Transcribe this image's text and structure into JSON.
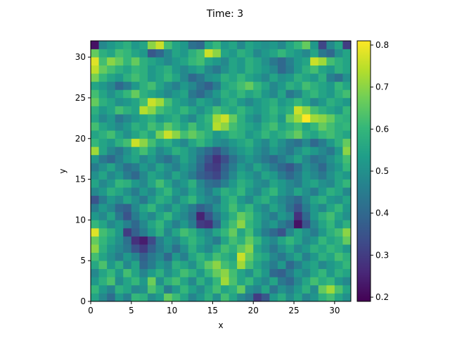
{
  "chart_data": {
    "type": "heatmap",
    "title": "Time: 3",
    "xlabel": "x",
    "ylabel": "y",
    "xlim": [
      0,
      32
    ],
    "ylim": [
      0,
      32
    ],
    "grid": false,
    "colormap": "viridis",
    "colorbar": {
      "min": 0.19,
      "max": 0.81,
      "ticks": [
        "0.2",
        "0.3",
        "0.4",
        "0.5",
        "0.6",
        "0.7",
        "0.8"
      ]
    },
    "x_ticks": [
      "0",
      "5",
      "10",
      "15",
      "20",
      "25",
      "30"
    ],
    "y_ticks": [
      "0",
      "5",
      "10",
      "15",
      "20",
      "25",
      "30"
    ],
    "rows": 32,
    "cols": 32,
    "values": [
      [
        0.55,
        0.48,
        0.41,
        0.52,
        0.46,
        0.6,
        0.58,
        0.49,
        0.53,
        0.66,
        0.61,
        0.55,
        0.47,
        0.52,
        0.58,
        0.5,
        0.62,
        0.55,
        0.48,
        0.44,
        0.3,
        0.36,
        0.52,
        0.57,
        0.49,
        0.55,
        0.47,
        0.51,
        0.58,
        0.62,
        0.55,
        0.5
      ],
      [
        0.6,
        0.52,
        0.47,
        0.58,
        0.55,
        0.48,
        0.5,
        0.63,
        0.57,
        0.45,
        0.52,
        0.6,
        0.54,
        0.49,
        0.56,
        0.62,
        0.55,
        0.58,
        0.66,
        0.5,
        0.47,
        0.55,
        0.43,
        0.5,
        0.46,
        0.52,
        0.58,
        0.49,
        0.66,
        0.72,
        0.63,
        0.55
      ],
      [
        0.52,
        0.58,
        0.63,
        0.49,
        0.55,
        0.6,
        0.52,
        0.67,
        0.5,
        0.58,
        0.62,
        0.55,
        0.48,
        0.58,
        0.52,
        0.6,
        0.72,
        0.63,
        0.55,
        0.6,
        0.52,
        0.48,
        0.55,
        0.44,
        0.4,
        0.48,
        0.55,
        0.62,
        0.57,
        0.6,
        0.52,
        0.48
      ],
      [
        0.48,
        0.55,
        0.6,
        0.52,
        0.62,
        0.55,
        0.47,
        0.53,
        0.58,
        0.5,
        0.55,
        0.62,
        0.58,
        0.52,
        0.6,
        0.66,
        0.7,
        0.62,
        0.55,
        0.5,
        0.58,
        0.52,
        0.4,
        0.38,
        0.45,
        0.52,
        0.48,
        0.55,
        0.6,
        0.52,
        0.58,
        0.55
      ],
      [
        0.56,
        0.63,
        0.52,
        0.58,
        0.48,
        0.55,
        0.4,
        0.45,
        0.52,
        0.48,
        0.58,
        0.55,
        0.5,
        0.58,
        0.65,
        0.7,
        0.62,
        0.58,
        0.72,
        0.62,
        0.55,
        0.5,
        0.45,
        0.52,
        0.4,
        0.46,
        0.52,
        0.55,
        0.48,
        0.52,
        0.55,
        0.6
      ],
      [
        0.62,
        0.55,
        0.5,
        0.45,
        0.52,
        0.47,
        0.38,
        0.44,
        0.48,
        0.4,
        0.52,
        0.46,
        0.55,
        0.6,
        0.55,
        0.62,
        0.58,
        0.55,
        0.76,
        0.66,
        0.58,
        0.55,
        0.48,
        0.44,
        0.5,
        0.55,
        0.46,
        0.52,
        0.58,
        0.55,
        0.62,
        0.58
      ],
      [
        0.7,
        0.58,
        0.52,
        0.48,
        0.44,
        0.35,
        0.3,
        0.38,
        0.45,
        0.5,
        0.42,
        0.5,
        0.58,
        0.52,
        0.48,
        0.55,
        0.62,
        0.58,
        0.65,
        0.7,
        0.55,
        0.5,
        0.44,
        0.5,
        0.55,
        0.48,
        0.52,
        0.58,
        0.55,
        0.6,
        0.57,
        0.52
      ],
      [
        0.66,
        0.6,
        0.55,
        0.5,
        0.42,
        0.28,
        0.24,
        0.33,
        0.46,
        0.52,
        0.48,
        0.55,
        0.6,
        0.55,
        0.5,
        0.45,
        0.55,
        0.62,
        0.58,
        0.66,
        0.6,
        0.52,
        0.48,
        0.55,
        0.6,
        0.55,
        0.48,
        0.52,
        0.6,
        0.55,
        0.58,
        0.66
      ],
      [
        0.78,
        0.62,
        0.58,
        0.52,
        0.3,
        0.38,
        0.45,
        0.52,
        0.58,
        0.48,
        0.55,
        0.62,
        0.58,
        0.52,
        0.48,
        0.55,
        0.6,
        0.66,
        0.55,
        0.62,
        0.52,
        0.45,
        0.4,
        0.35,
        0.48,
        0.55,
        0.5,
        0.45,
        0.52,
        0.58,
        0.62,
        0.7
      ],
      [
        0.6,
        0.55,
        0.48,
        0.52,
        0.46,
        0.4,
        0.48,
        0.55,
        0.6,
        0.52,
        0.46,
        0.52,
        0.45,
        0.3,
        0.28,
        0.4,
        0.55,
        0.62,
        0.7,
        0.6,
        0.55,
        0.48,
        0.52,
        0.45,
        0.4,
        0.22,
        0.35,
        0.48,
        0.55,
        0.6,
        0.52,
        0.58
      ],
      [
        0.52,
        0.48,
        0.55,
        0.44,
        0.35,
        0.45,
        0.52,
        0.48,
        0.55,
        0.6,
        0.52,
        0.48,
        0.42,
        0.25,
        0.35,
        0.45,
        0.52,
        0.58,
        0.66,
        0.62,
        0.55,
        0.5,
        0.45,
        0.52,
        0.48,
        0.28,
        0.4,
        0.52,
        0.58,
        0.62,
        0.55,
        0.5
      ],
      [
        0.45,
        0.52,
        0.48,
        0.4,
        0.38,
        0.48,
        0.55,
        0.6,
        0.52,
        0.48,
        0.55,
        0.5,
        0.45,
        0.38,
        0.42,
        0.5,
        0.55,
        0.62,
        0.55,
        0.6,
        0.52,
        0.48,
        0.55,
        0.5,
        0.42,
        0.35,
        0.45,
        0.52,
        0.48,
        0.55,
        0.6,
        0.52
      ],
      [
        0.35,
        0.45,
        0.52,
        0.48,
        0.55,
        0.5,
        0.44,
        0.52,
        0.58,
        0.55,
        0.48,
        0.55,
        0.6,
        0.52,
        0.48,
        0.45,
        0.55,
        0.6,
        0.52,
        0.48,
        0.55,
        0.58,
        0.52,
        0.48,
        0.44,
        0.4,
        0.48,
        0.55,
        0.58,
        0.52,
        0.5,
        0.55
      ],
      [
        0.48,
        0.52,
        0.58,
        0.55,
        0.5,
        0.45,
        0.52,
        0.48,
        0.55,
        0.6,
        0.52,
        0.48,
        0.55,
        0.5,
        0.45,
        0.52,
        0.58,
        0.55,
        0.6,
        0.52,
        0.48,
        0.55,
        0.6,
        0.52,
        0.48,
        0.55,
        0.5,
        0.45,
        0.52,
        0.58,
        0.55,
        0.48
      ],
      [
        0.55,
        0.48,
        0.52,
        0.6,
        0.58,
        0.52,
        0.48,
        0.55,
        0.62,
        0.55,
        0.48,
        0.52,
        0.58,
        0.48,
        0.42,
        0.4,
        0.46,
        0.52,
        0.58,
        0.55,
        0.5,
        0.48,
        0.55,
        0.52,
        0.48,
        0.45,
        0.52,
        0.55,
        0.5,
        0.48,
        0.55,
        0.6
      ],
      [
        0.5,
        0.55,
        0.48,
        0.52,
        0.45,
        0.4,
        0.48,
        0.55,
        0.52,
        0.48,
        0.55,
        0.5,
        0.45,
        0.38,
        0.35,
        0.32,
        0.4,
        0.48,
        0.55,
        0.52,
        0.48,
        0.55,
        0.52,
        0.45,
        0.4,
        0.45,
        0.52,
        0.48,
        0.44,
        0.5,
        0.55,
        0.52
      ],
      [
        0.45,
        0.5,
        0.55,
        0.48,
        0.42,
        0.45,
        0.52,
        0.48,
        0.55,
        0.5,
        0.46,
        0.52,
        0.48,
        0.4,
        0.32,
        0.3,
        0.38,
        0.45,
        0.52,
        0.48,
        0.55,
        0.5,
        0.45,
        0.4,
        0.36,
        0.42,
        0.5,
        0.46,
        0.4,
        0.48,
        0.52,
        0.6
      ],
      [
        0.52,
        0.44,
        0.4,
        0.46,
        0.52,
        0.55,
        0.48,
        0.52,
        0.46,
        0.42,
        0.48,
        0.55,
        0.5,
        0.42,
        0.35,
        0.28,
        0.34,
        0.42,
        0.48,
        0.52,
        0.48,
        0.44,
        0.4,
        0.45,
        0.5,
        0.55,
        0.48,
        0.42,
        0.45,
        0.5,
        0.55,
        0.62
      ],
      [
        0.72,
        0.55,
        0.48,
        0.44,
        0.5,
        0.56,
        0.62,
        0.55,
        0.48,
        0.52,
        0.58,
        0.55,
        0.5,
        0.45,
        0.4,
        0.35,
        0.42,
        0.48,
        0.52,
        0.55,
        0.5,
        0.46,
        0.52,
        0.48,
        0.44,
        0.5,
        0.55,
        0.52,
        0.48,
        0.44,
        0.52,
        0.7
      ],
      [
        0.6,
        0.55,
        0.52,
        0.58,
        0.62,
        0.76,
        0.7,
        0.62,
        0.55,
        0.58,
        0.52,
        0.48,
        0.55,
        0.6,
        0.55,
        0.5,
        0.48,
        0.52,
        0.55,
        0.58,
        0.52,
        0.48,
        0.55,
        0.5,
        0.45,
        0.42,
        0.48,
        0.4,
        0.45,
        0.52,
        0.58,
        0.66
      ],
      [
        0.55,
        0.58,
        0.62,
        0.55,
        0.5,
        0.55,
        0.6,
        0.55,
        0.68,
        0.76,
        0.7,
        0.62,
        0.66,
        0.62,
        0.58,
        0.52,
        0.55,
        0.6,
        0.58,
        0.52,
        0.55,
        0.6,
        0.55,
        0.58,
        0.62,
        0.66,
        0.58,
        0.55,
        0.6,
        0.62,
        0.58,
        0.55
      ],
      [
        0.62,
        0.55,
        0.52,
        0.48,
        0.52,
        0.58,
        0.55,
        0.62,
        0.58,
        0.65,
        0.6,
        0.55,
        0.62,
        0.55,
        0.58,
        0.74,
        0.7,
        0.62,
        0.58,
        0.55,
        0.52,
        0.58,
        0.62,
        0.55,
        0.58,
        0.62,
        0.55,
        0.6,
        0.66,
        0.62,
        0.58,
        0.6
      ],
      [
        0.55,
        0.48,
        0.52,
        0.44,
        0.48,
        0.52,
        0.55,
        0.58,
        0.52,
        0.55,
        0.58,
        0.52,
        0.48,
        0.55,
        0.6,
        0.72,
        0.76,
        0.66,
        0.58,
        0.52,
        0.48,
        0.55,
        0.58,
        0.52,
        0.66,
        0.72,
        0.82,
        0.72,
        0.7,
        0.66,
        0.6,
        0.58
      ],
      [
        0.58,
        0.52,
        0.55,
        0.62,
        0.58,
        0.55,
        0.74,
        0.7,
        0.62,
        0.58,
        0.55,
        0.6,
        0.55,
        0.5,
        0.55,
        0.62,
        0.58,
        0.55,
        0.6,
        0.55,
        0.52,
        0.55,
        0.6,
        0.55,
        0.58,
        0.76,
        0.7,
        0.62,
        0.58,
        0.55,
        0.52,
        0.6
      ],
      [
        0.66,
        0.58,
        0.55,
        0.5,
        0.52,
        0.55,
        0.62,
        0.76,
        0.72,
        0.62,
        0.55,
        0.52,
        0.48,
        0.55,
        0.52,
        0.48,
        0.55,
        0.58,
        0.52,
        0.48,
        0.52,
        0.55,
        0.58,
        0.52,
        0.55,
        0.6,
        0.55,
        0.48,
        0.52,
        0.58,
        0.55,
        0.52
      ],
      [
        0.62,
        0.55,
        0.5,
        0.55,
        0.6,
        0.66,
        0.58,
        0.55,
        0.52,
        0.48,
        0.52,
        0.55,
        0.44,
        0.4,
        0.46,
        0.52,
        0.58,
        0.55,
        0.6,
        0.55,
        0.58,
        0.52,
        0.48,
        0.55,
        0.44,
        0.48,
        0.56,
        0.6,
        0.55,
        0.52,
        0.58,
        0.62
      ],
      [
        0.55,
        0.52,
        0.48,
        0.4,
        0.45,
        0.52,
        0.58,
        0.62,
        0.55,
        0.5,
        0.46,
        0.52,
        0.48,
        0.42,
        0.38,
        0.45,
        0.55,
        0.58,
        0.62,
        0.66,
        0.6,
        0.55,
        0.48,
        0.52,
        0.58,
        0.55,
        0.62,
        0.58,
        0.55,
        0.52,
        0.6,
        0.55
      ],
      [
        0.68,
        0.6,
        0.55,
        0.52,
        0.58,
        0.62,
        0.58,
        0.52,
        0.55,
        0.6,
        0.55,
        0.48,
        0.4,
        0.44,
        0.5,
        0.52,
        0.58,
        0.55,
        0.6,
        0.55,
        0.52,
        0.48,
        0.55,
        0.5,
        0.52,
        0.58,
        0.55,
        0.52,
        0.58,
        0.46,
        0.42,
        0.5
      ],
      [
        0.75,
        0.66,
        0.62,
        0.58,
        0.55,
        0.6,
        0.58,
        0.52,
        0.55,
        0.58,
        0.52,
        0.48,
        0.52,
        0.55,
        0.48,
        0.44,
        0.5,
        0.55,
        0.52,
        0.58,
        0.55,
        0.52,
        0.48,
        0.4,
        0.45,
        0.52,
        0.58,
        0.62,
        0.55,
        0.52,
        0.58,
        0.55
      ],
      [
        0.78,
        0.62,
        0.7,
        0.66,
        0.6,
        0.66,
        0.58,
        0.55,
        0.52,
        0.48,
        0.52,
        0.55,
        0.6,
        0.62,
        0.55,
        0.52,
        0.48,
        0.55,
        0.52,
        0.58,
        0.55,
        0.5,
        0.44,
        0.4,
        0.46,
        0.52,
        0.55,
        0.76,
        0.72,
        0.62,
        0.58,
        0.55
      ],
      [
        0.66,
        0.58,
        0.55,
        0.62,
        0.6,
        0.55,
        0.52,
        0.36,
        0.4,
        0.48,
        0.55,
        0.52,
        0.58,
        0.62,
        0.76,
        0.7,
        0.55,
        0.52,
        0.58,
        0.55,
        0.48,
        0.52,
        0.55,
        0.6,
        0.55,
        0.52,
        0.48,
        0.55,
        0.44,
        0.4,
        0.5,
        0.55
      ],
      [
        0.22,
        0.48,
        0.52,
        0.55,
        0.58,
        0.52,
        0.55,
        0.7,
        0.76,
        0.62,
        0.55,
        0.52,
        0.42,
        0.4,
        0.55,
        0.6,
        0.52,
        0.55,
        0.48,
        0.55,
        0.52,
        0.5,
        0.52,
        0.48,
        0.55,
        0.6,
        0.66,
        0.52,
        0.32,
        0.48,
        0.55,
        0.3
      ]
    ]
  }
}
